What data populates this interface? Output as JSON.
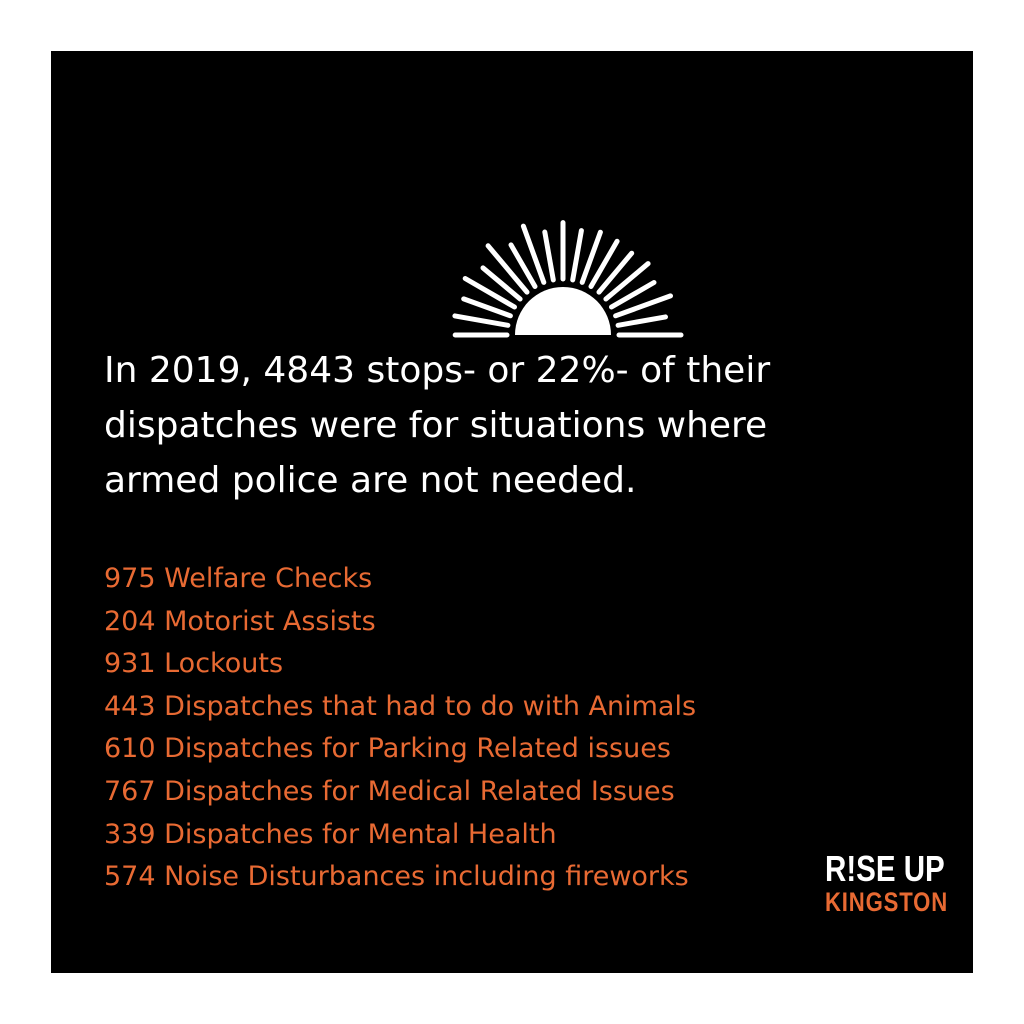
{
  "headline": {
    "line1": "In 2019, 4843 stops- or 22%- of their",
    "line2": "dispatches were for situations where",
    "line3": "armed police are not needed."
  },
  "stats": [
    "975 Welfare Checks",
    "204 Motorist Assists",
    "931 Lockouts",
    "443 Dispatches that had to do with Animals",
    "610 Dispatches for Parking Related issues",
    "767 Dispatches for Medical Related Issues",
    "339 Dispatches for Mental Health",
    "574 Noise Disturbances including fireworks"
  ],
  "logo": {
    "top": "R!SE UP",
    "bottom": "KINGSTON"
  },
  "colors": {
    "background": "#000000",
    "text": "#ffffff",
    "accent": "#e86a33",
    "frame": "#ffffff"
  },
  "icons": {
    "sun": "rising-sun-icon"
  }
}
